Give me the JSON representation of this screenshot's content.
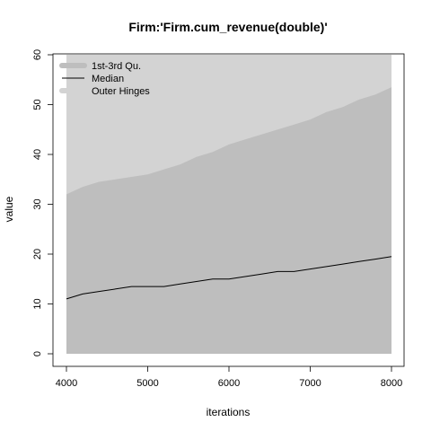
{
  "chart_data": {
    "type": "area",
    "title": "Firm:'Firm.cum_revenue(double)'",
    "xlabel": "iterations",
    "ylabel": "value",
    "xlim": [
      4000,
      8000
    ],
    "ylim": [
      0,
      60
    ],
    "x_ticks": [
      "4000",
      "5000",
      "6000",
      "7000",
      "8000"
    ],
    "y_ticks": [
      "0",
      "10",
      "20",
      "30",
      "40",
      "50",
      "60"
    ],
    "legend": {
      "placement": "top-left",
      "entries": [
        "1st-3rd Qu.",
        "Median",
        "Outer Hinges"
      ]
    },
    "colors": {
      "outer_hinges": "#d3d3d3",
      "quartiles": "#bebebe",
      "median": "#000000"
    },
    "x": [
      4000,
      4200,
      4400,
      4600,
      4800,
      5000,
      5200,
      5400,
      5600,
      5800,
      6000,
      6200,
      6400,
      6600,
      6800,
      7000,
      7200,
      7400,
      7600,
      7800,
      8000
    ],
    "series": [
      {
        "name": "Outer Hinges",
        "lower": [
          0,
          0,
          0,
          0,
          0,
          0,
          0,
          0,
          0,
          0,
          0,
          0,
          0,
          0,
          0,
          0,
          0,
          0,
          0,
          0,
          0
        ],
        "upper": [
          60,
          60,
          60,
          60,
          60,
          60,
          60,
          60,
          60,
          60,
          60,
          60,
          60,
          60,
          60,
          60,
          60,
          60,
          60,
          60,
          60
        ]
      },
      {
        "name": "1st-3rd Qu.",
        "lower": [
          0,
          0,
          0,
          0,
          0,
          0,
          0,
          0,
          0,
          0,
          0,
          0,
          0,
          0,
          0,
          0,
          0,
          0,
          0,
          0,
          0
        ],
        "upper": [
          32,
          33.5,
          34.5,
          35,
          35.5,
          36,
          37,
          38,
          39.5,
          40.5,
          42,
          43,
          44,
          45,
          46,
          47,
          48.5,
          49.5,
          51,
          52,
          53.5
        ]
      },
      {
        "name": "Median",
        "values": [
          11,
          12,
          12.5,
          13,
          13.5,
          13.5,
          13.5,
          14,
          14.5,
          15,
          15,
          15.5,
          16,
          16.5,
          16.5,
          17,
          17.5,
          18,
          18.5,
          19,
          19.5
        ]
      }
    ]
  }
}
